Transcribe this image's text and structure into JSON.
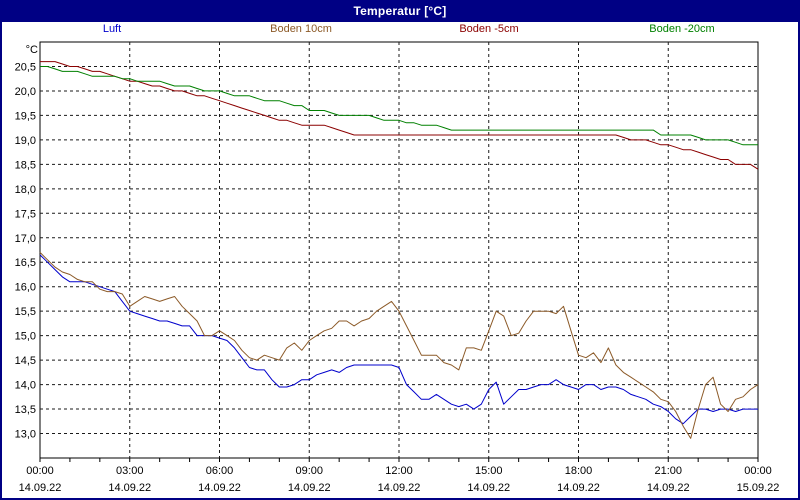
{
  "window": {
    "title": "Temperatur [°C]"
  },
  "colors": {
    "titlebar_bg": "#000084",
    "titlebar_text": "#ffffff",
    "frame_border": "#000084",
    "background": "#ffffff",
    "plot_border": "#000000",
    "grid": "#1a1a1a"
  },
  "chart_data": {
    "type": "line",
    "title": "Temperatur [°C]",
    "xlabel": "",
    "ylabel": "",
    "y_unit_label": "°C",
    "ylim": [
      12.5,
      21.0
    ],
    "x_range_hours": [
      0,
      24
    ],
    "grid": true,
    "legend_position": "top",
    "sample_interval_minutes": 15,
    "y_ticks": [
      {
        "value": 20.5,
        "label": "20,5"
      },
      {
        "value": 20.0,
        "label": "20,0"
      },
      {
        "value": 19.5,
        "label": "19,5"
      },
      {
        "value": 19.0,
        "label": "19,0"
      },
      {
        "value": 18.5,
        "label": "18,5"
      },
      {
        "value": 18.0,
        "label": "18,0"
      },
      {
        "value": 17.5,
        "label": "17,5"
      },
      {
        "value": 17.0,
        "label": "17,0"
      },
      {
        "value": 16.5,
        "label": "16,5"
      },
      {
        "value": 16.0,
        "label": "16,0"
      },
      {
        "value": 15.5,
        "label": "15,5"
      },
      {
        "value": 15.0,
        "label": "15,0"
      },
      {
        "value": 14.5,
        "label": "14,5"
      },
      {
        "value": 14.0,
        "label": "14,0"
      },
      {
        "value": 13.5,
        "label": "13,5"
      },
      {
        "value": 13.0,
        "label": "13,0"
      }
    ],
    "x_ticks": [
      {
        "hour": 0,
        "time": "00:00",
        "date": "14.09.22"
      },
      {
        "hour": 3,
        "time": "03:00",
        "date": "14.09.22"
      },
      {
        "hour": 6,
        "time": "06:00",
        "date": "14.09.22"
      },
      {
        "hour": 9,
        "time": "09:00",
        "date": "14.09.22"
      },
      {
        "hour": 12,
        "time": "12:00",
        "date": "14.09.22"
      },
      {
        "hour": 15,
        "time": "15:00",
        "date": "14.09.22"
      },
      {
        "hour": 18,
        "time": "18:00",
        "date": "14.09.22"
      },
      {
        "hour": 21,
        "time": "21:00",
        "date": "14.09.22"
      },
      {
        "hour": 24,
        "time": "00:00",
        "date": "15.09.22"
      }
    ],
    "x_minor_tick_hours": 1,
    "series": [
      {
        "name": "Luft",
        "color": "#0000cc",
        "values": [
          16.65,
          16.5,
          16.35,
          16.2,
          16.1,
          16.1,
          16.1,
          16.05,
          16.0,
          15.95,
          15.9,
          15.7,
          15.5,
          15.45,
          15.4,
          15.35,
          15.3,
          15.3,
          15.25,
          15.2,
          15.2,
          15.0,
          15.0,
          15.0,
          14.95,
          14.9,
          14.75,
          14.55,
          14.35,
          14.3,
          14.3,
          14.1,
          13.95,
          13.95,
          14.0,
          14.1,
          14.1,
          14.2,
          14.25,
          14.3,
          14.25,
          14.35,
          14.4,
          14.4,
          14.4,
          14.4,
          14.4,
          14.4,
          14.35,
          14.0,
          13.85,
          13.7,
          13.7,
          13.8,
          13.7,
          13.6,
          13.55,
          13.6,
          13.5,
          13.6,
          13.9,
          14.05,
          13.6,
          13.75,
          13.9,
          13.9,
          13.95,
          14.0,
          14.0,
          14.1,
          14.0,
          13.95,
          13.9,
          14.0,
          14.0,
          13.9,
          13.95,
          13.95,
          13.9,
          13.8,
          13.75,
          13.7,
          13.6,
          13.55,
          13.45,
          13.3,
          13.2,
          13.35,
          13.5,
          13.5,
          13.45,
          13.5,
          13.5,
          13.45,
          13.5,
          13.5,
          13.5
        ]
      },
      {
        "name": "Boden 10cm",
        "color": "#8c5a28",
        "values": [
          16.7,
          16.55,
          16.4,
          16.3,
          16.25,
          16.15,
          16.1,
          16.1,
          15.95,
          15.9,
          15.9,
          15.85,
          15.6,
          15.7,
          15.8,
          15.75,
          15.7,
          15.75,
          15.8,
          15.6,
          15.45,
          15.3,
          15.0,
          15.0,
          15.1,
          15.0,
          14.9,
          14.7,
          14.55,
          14.5,
          14.6,
          14.55,
          14.5,
          14.75,
          14.85,
          14.7,
          14.9,
          15.0,
          15.1,
          15.15,
          15.3,
          15.3,
          15.2,
          15.3,
          15.35,
          15.5,
          15.6,
          15.7,
          15.5,
          15.2,
          14.9,
          14.6,
          14.6,
          14.6,
          14.45,
          14.4,
          14.3,
          14.75,
          14.75,
          14.7,
          15.1,
          15.5,
          15.4,
          15.0,
          15.05,
          15.3,
          15.5,
          15.5,
          15.5,
          15.45,
          15.6,
          15.1,
          14.6,
          14.55,
          14.65,
          14.45,
          14.75,
          14.4,
          14.25,
          14.15,
          14.05,
          13.95,
          13.85,
          13.7,
          13.65,
          13.45,
          13.15,
          12.9,
          13.5,
          14.0,
          14.15,
          13.6,
          13.45,
          13.7,
          13.75,
          13.9,
          14.0
        ]
      },
      {
        "name": "Boden -5cm",
        "color": "#8b0000",
        "values": [
          20.6,
          20.6,
          20.6,
          20.55,
          20.5,
          20.5,
          20.45,
          20.4,
          20.4,
          20.35,
          20.3,
          20.25,
          20.2,
          20.2,
          20.15,
          20.1,
          20.1,
          20.05,
          20.0,
          20.0,
          19.95,
          19.9,
          19.9,
          19.85,
          19.8,
          19.75,
          19.7,
          19.65,
          19.6,
          19.55,
          19.5,
          19.45,
          19.4,
          19.4,
          19.35,
          19.3,
          19.3,
          19.3,
          19.3,
          19.25,
          19.2,
          19.15,
          19.1,
          19.1,
          19.1,
          19.1,
          19.1,
          19.1,
          19.1,
          19.1,
          19.1,
          19.1,
          19.1,
          19.1,
          19.1,
          19.1,
          19.1,
          19.1,
          19.1,
          19.1,
          19.1,
          19.1,
          19.1,
          19.1,
          19.1,
          19.1,
          19.1,
          19.1,
          19.1,
          19.1,
          19.1,
          19.1,
          19.1,
          19.1,
          19.1,
          19.1,
          19.1,
          19.1,
          19.05,
          19.0,
          19.0,
          19.0,
          18.95,
          18.9,
          18.9,
          18.85,
          18.8,
          18.8,
          18.75,
          18.7,
          18.65,
          18.6,
          18.6,
          18.5,
          18.5,
          18.5,
          18.4
        ]
      },
      {
        "name": "Boden -20cm",
        "color": "#008000",
        "values": [
          20.5,
          20.5,
          20.45,
          20.4,
          20.4,
          20.4,
          20.35,
          20.3,
          20.3,
          20.3,
          20.3,
          20.25,
          20.25,
          20.2,
          20.2,
          20.2,
          20.2,
          20.15,
          20.1,
          20.1,
          20.1,
          20.05,
          20.0,
          20.0,
          20.0,
          19.95,
          19.9,
          19.9,
          19.9,
          19.85,
          19.8,
          19.8,
          19.8,
          19.75,
          19.7,
          19.7,
          19.6,
          19.6,
          19.6,
          19.55,
          19.5,
          19.5,
          19.5,
          19.5,
          19.5,
          19.45,
          19.4,
          19.4,
          19.4,
          19.35,
          19.35,
          19.3,
          19.3,
          19.3,
          19.25,
          19.2,
          19.2,
          19.2,
          19.2,
          19.2,
          19.2,
          19.2,
          19.2,
          19.2,
          19.2,
          19.2,
          19.2,
          19.2,
          19.2,
          19.2,
          19.2,
          19.2,
          19.2,
          19.2,
          19.2,
          19.2,
          19.2,
          19.2,
          19.2,
          19.2,
          19.2,
          19.2,
          19.2,
          19.1,
          19.1,
          19.1,
          19.1,
          19.1,
          19.05,
          19.0,
          19.0,
          19.0,
          19.0,
          18.95,
          18.9,
          18.9,
          18.9
        ]
      }
    ]
  }
}
